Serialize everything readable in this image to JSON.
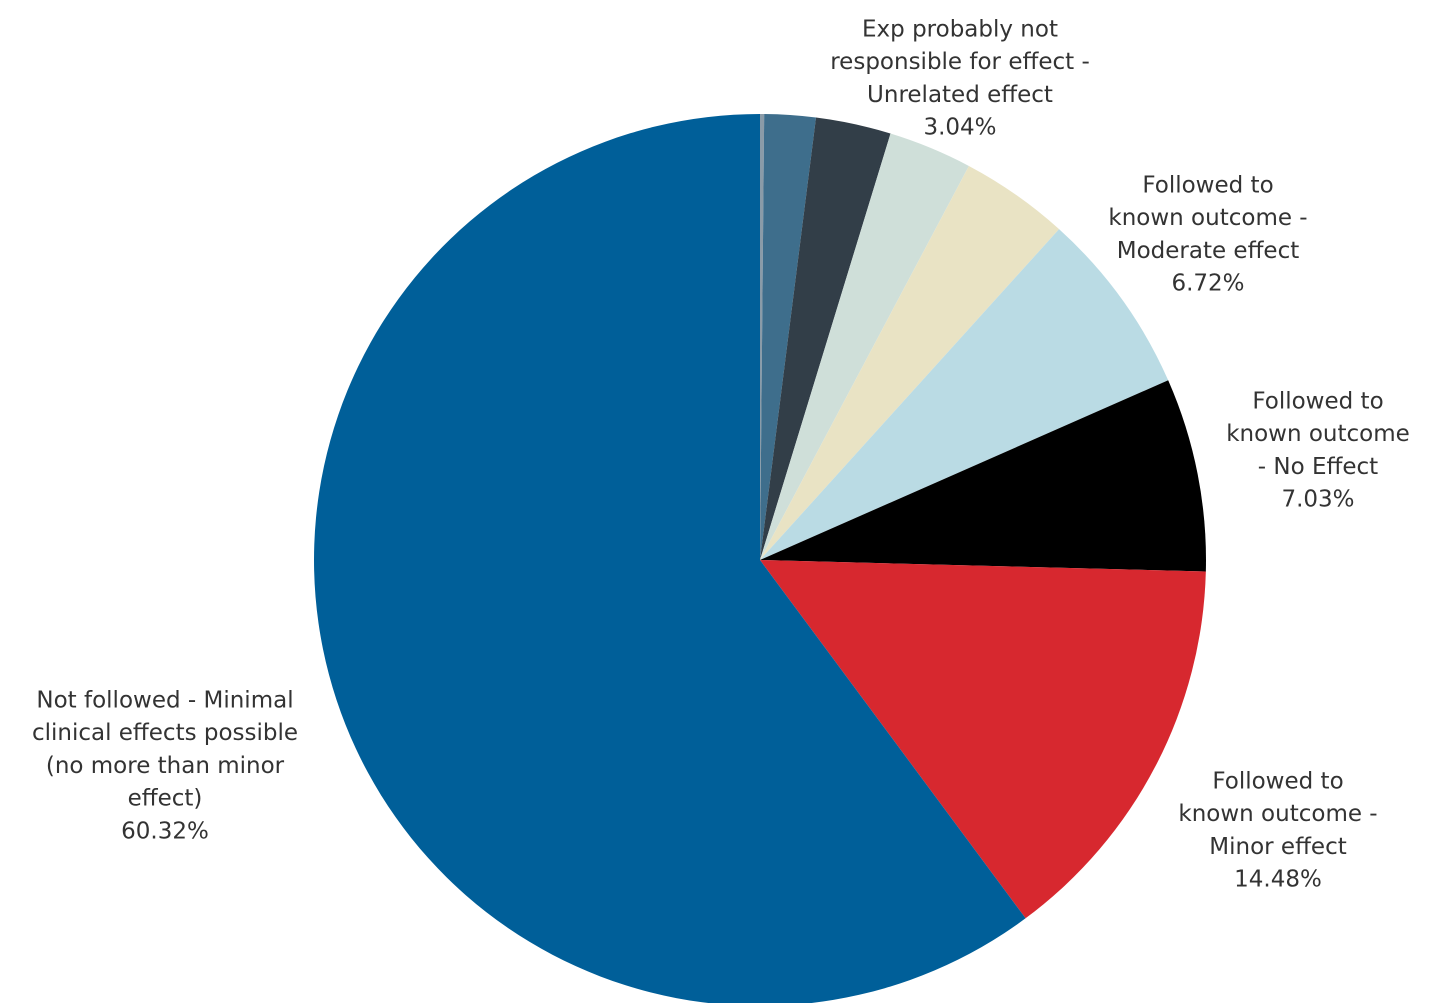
{
  "chart_data": {
    "type": "pie",
    "title": "",
    "start_angle_deg": 0,
    "direction": "clockwise",
    "slices": [
      {
        "label": "",
        "value": 0.15,
        "color": "#8a9ba8",
        "shown": false
      },
      {
        "label": "",
        "value": 1.86,
        "color": "#3e6e8c",
        "shown": false
      },
      {
        "label": "",
        "value": 2.73,
        "color": "#323e48",
        "shown": false
      },
      {
        "label_lines": [
          "Exp probably not",
          "responsible for effect -",
          "Unrelated effect"
        ],
        "pct": "3.04%",
        "value": 3.04,
        "color": "#cfdfd9",
        "shown": true
      },
      {
        "label": "",
        "value": 3.95,
        "color": "#e9e3c4",
        "shown": false
      },
      {
        "label_lines": [
          "Followed to",
          "known outcome -",
          "Moderate effect"
        ],
        "pct": "6.72%",
        "value": 6.72,
        "color": "#badbe4",
        "shown": true
      },
      {
        "label_lines": [
          "Followed to",
          "known outcome",
          "- No Effect"
        ],
        "pct": "7.03%",
        "value": 7.03,
        "color": "#000000",
        "shown": true
      },
      {
        "label_lines": [
          "Followed to",
          "known outcome -",
          "Minor effect"
        ],
        "pct": "14.48%",
        "value": 14.48,
        "color": "#d7282f",
        "shown": true
      },
      {
        "label_lines": [
          "Not followed - Minimal",
          "clinical effects possible",
          "(no more than minor",
          "effect)"
        ],
        "pct": "60.32%",
        "value": 60.32,
        "color": "#005f99",
        "shown": true
      }
    ]
  }
}
